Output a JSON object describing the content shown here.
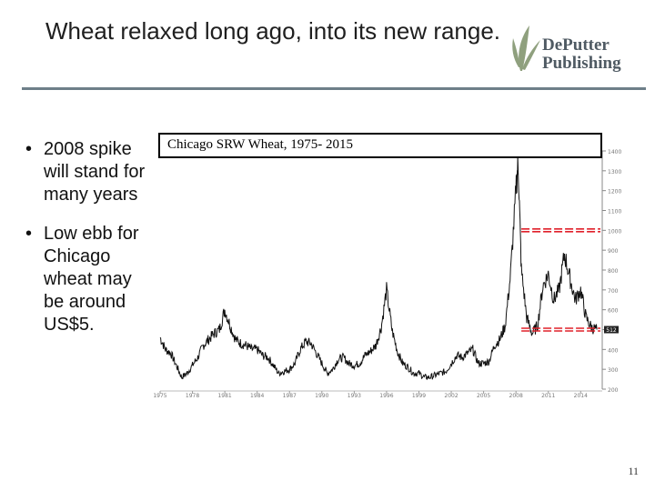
{
  "slide": {
    "title": "Wheat relaxed long ago, into its new range.",
    "page_number": "11",
    "bullets": [
      "2008 spike will stand for many years",
      "Low ebb for Chicago wheat may be around US$5."
    ],
    "logo": {
      "line1": "DePutter",
      "line2": "Publishing",
      "color": "#4f5a63",
      "leaf_color": "#8fa07e"
    },
    "accent_rule_color": "#6e7f89",
    "marker_color": "#e0202a"
  },
  "chart_data": {
    "type": "line",
    "title": "Chicago SRW Wheat, 1975- 2015",
    "x_ticks": [
      "1975",
      "1978",
      "1981",
      "1984",
      "1987",
      "1990",
      "1993",
      "1996",
      "1999",
      "2002",
      "2005",
      "2008",
      "2011",
      "2014"
    ],
    "y_ticks": [
      "1400",
      "1300",
      "1200",
      "1100",
      "1000",
      "900",
      "800",
      "700",
      "600",
      "500",
      "400",
      "300",
      "200"
    ],
    "ylim": [
      200,
      1400
    ],
    "xlim": [
      1975,
      2016
    ],
    "last_value_label": "512",
    "grid": false,
    "series": [
      {
        "x": [
          1975,
          1975.5,
          1976,
          1976.5,
          1977,
          1977.5,
          1978,
          1978.5,
          1979,
          1979.5,
          1980,
          1980.5,
          1981,
          1981.5,
          1982,
          1982.5,
          1983,
          1983.5,
          1984,
          1984.5,
          1985,
          1985.5,
          1986,
          1986.5,
          1987,
          1987.5,
          1988,
          1988.5,
          1989,
          1989.5,
          1990,
          1990.5,
          1991,
          1991.5,
          1992,
          1992.5,
          1993,
          1993.5,
          1994,
          1994.5,
          1995,
          1995.5,
          1996,
          1996.5,
          1997,
          1997.5,
          1998,
          1998.5,
          1999,
          1999.5,
          2000,
          2000.5,
          2001,
          2001.5,
          2002,
          2002.5,
          2003,
          2003.5,
          2004,
          2004.5,
          2005,
          2005.5,
          2006,
          2006.5,
          2007,
          2007.5,
          2008,
          2008.2,
          2008.5,
          2009,
          2009.5,
          2010,
          2010.5,
          2011,
          2011.5,
          2012,
          2012.5,
          2013,
          2013.5,
          2014,
          2014.5,
          2015,
          2015.5
        ],
        "values": [
          460,
          400,
          380,
          320,
          260,
          280,
          320,
          360,
          420,
          450,
          480,
          500,
          600,
          520,
          450,
          430,
          420,
          400,
          400,
          370,
          360,
          320,
          280,
          290,
          300,
          330,
          400,
          440,
          430,
          380,
          330,
          280,
          300,
          350,
          360,
          330,
          320,
          330,
          370,
          390,
          420,
          510,
          700,
          500,
          390,
          330,
          310,
          280,
          280,
          260,
          260,
          270,
          280,
          290,
          330,
          370,
          360,
          380,
          400,
          330,
          330,
          340,
          420,
          450,
          520,
          780,
          1200,
          1350,
          800,
          560,
          480,
          520,
          720,
          780,
          650,
          700,
          880,
          760,
          650,
          700,
          560,
          510,
          500
        ]
      }
    ],
    "reference_lines": [
      1000,
      500
    ]
  }
}
